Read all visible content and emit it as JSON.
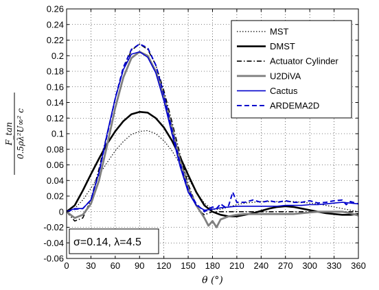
{
  "chart_data": {
    "type": "line",
    "xlabel": "θ (°)",
    "ylabel_num": "F_tan",
    "ylabel_den": "0.5ρλ²U∞² c",
    "xlim": [
      0,
      360
    ],
    "ylim": [
      -0.06,
      0.26
    ],
    "xticks": [
      "0",
      "30",
      "60",
      "90",
      "120",
      "150",
      "180",
      "210",
      "240",
      "270",
      "300",
      "330",
      "360"
    ],
    "yticks": [
      "-0.06",
      "-0.04",
      "-0.02",
      "0",
      "0.02",
      "0.04",
      "0.06",
      "0.08",
      "0.1",
      "0.12",
      "0.14",
      "0.16",
      "0.18",
      "0.2",
      "0.22",
      "0.24",
      "0.26"
    ],
    "grid": true,
    "grid_style": "dotted",
    "legend_position": "top-right",
    "annotation": "σ=0.14, λ=4.5",
    "series": [
      {
        "name": "MST",
        "color": "#000000",
        "style": "dotted",
        "x": [
          0,
          10,
          20,
          30,
          40,
          50,
          60,
          70,
          80,
          90,
          100,
          110,
          120,
          130,
          140,
          150,
          160,
          170,
          180,
          190,
          200,
          210,
          220,
          230,
          240,
          250,
          260,
          270,
          280,
          290,
          300,
          310,
          320,
          330,
          340,
          350,
          360
        ],
        "y": [
          0.0,
          0.004,
          0.015,
          0.03,
          0.047,
          0.063,
          0.078,
          0.09,
          0.099,
          0.103,
          0.104,
          0.1,
          0.091,
          0.078,
          0.061,
          0.043,
          0.025,
          0.011,
          0.003,
          0.003,
          0.006,
          0.009,
          0.011,
          0.012,
          0.013,
          0.013,
          0.013,
          0.013,
          0.013,
          0.012,
          0.011,
          0.01,
          0.008,
          0.006,
          0.004,
          0.002,
          0.0
        ]
      },
      {
        "name": "DMST",
        "color": "#000000",
        "style": "solid",
        "x": [
          0,
          10,
          20,
          30,
          40,
          50,
          60,
          70,
          80,
          90,
          100,
          110,
          120,
          130,
          140,
          150,
          160,
          170,
          180,
          190,
          200,
          210,
          220,
          230,
          240,
          250,
          260,
          270,
          280,
          290,
          300,
          310,
          320,
          330,
          340,
          350,
          360
        ],
        "y": [
          0.0,
          0.008,
          0.027,
          0.048,
          0.068,
          0.087,
          0.103,
          0.116,
          0.125,
          0.128,
          0.127,
          0.12,
          0.108,
          0.091,
          0.07,
          0.047,
          0.025,
          0.008,
          0.0,
          -0.004,
          -0.006,
          -0.006,
          -0.004,
          -0.002,
          0.001,
          0.004,
          0.006,
          0.007,
          0.006,
          0.004,
          0.002,
          0.0,
          -0.002,
          -0.003,
          -0.004,
          -0.004,
          -0.003
        ]
      },
      {
        "name": "Actuator Cylinder",
        "color": "#000000",
        "style": "dashdot",
        "x": [
          0,
          10,
          20,
          30,
          40,
          50,
          60,
          70,
          80,
          90,
          100,
          110,
          120,
          130,
          140,
          150,
          160,
          165,
          170,
          175,
          180,
          190,
          200,
          210,
          220,
          230,
          240,
          250,
          260,
          270,
          280,
          290,
          300,
          310,
          320,
          330,
          340,
          350,
          360
        ],
        "y": [
          0.0,
          -0.012,
          -0.008,
          0.015,
          0.055,
          0.1,
          0.145,
          0.182,
          0.207,
          0.215,
          0.208,
          0.188,
          0.155,
          0.115,
          0.073,
          0.035,
          0.008,
          0.0,
          -0.004,
          -0.002,
          0.0,
          0.0,
          0.0,
          0.0,
          0.0,
          0.0,
          0.0,
          0.0,
          0.0,
          0.0,
          0.0,
          0.0,
          0.0,
          0.0,
          0.0,
          0.0,
          0.0,
          0.0,
          0.0
        ]
      },
      {
        "name": "U2DiVA",
        "color": "#808080",
        "style": "solid-thick",
        "x": [
          0,
          10,
          20,
          30,
          40,
          50,
          60,
          70,
          80,
          90,
          100,
          110,
          120,
          130,
          140,
          150,
          160,
          170,
          175,
          180,
          185,
          190,
          200,
          210,
          220,
          230,
          240,
          250,
          260,
          270,
          280,
          290,
          300,
          310,
          320,
          330,
          340,
          350,
          360
        ],
        "y": [
          0.0,
          -0.008,
          -0.004,
          0.01,
          0.04,
          0.085,
          0.133,
          0.172,
          0.197,
          0.205,
          0.2,
          0.18,
          0.148,
          0.108,
          0.065,
          0.03,
          0.008,
          -0.008,
          -0.018,
          -0.012,
          -0.02,
          -0.01,
          -0.006,
          -0.004,
          -0.003,
          -0.003,
          -0.003,
          -0.003,
          -0.003,
          -0.003,
          -0.003,
          -0.002,
          -0.001,
          0.0,
          0.0,
          0.0,
          0.0,
          -0.002,
          -0.005
        ]
      },
      {
        "name": "Cactus",
        "color": "#0000CC",
        "style": "solid",
        "x": [
          0,
          10,
          20,
          30,
          40,
          50,
          60,
          70,
          80,
          90,
          100,
          110,
          120,
          130,
          140,
          150,
          160,
          170,
          180,
          190,
          200,
          210,
          220,
          230,
          240,
          250,
          260,
          270,
          280,
          290,
          300,
          310,
          320,
          330,
          340,
          350,
          360
        ],
        "y": [
          0.0,
          0.004,
          0.004,
          0.015,
          0.05,
          0.1,
          0.145,
          0.182,
          0.202,
          0.205,
          0.198,
          0.178,
          0.142,
          0.1,
          0.058,
          0.025,
          0.008,
          0.002,
          0.003,
          0.005,
          0.006,
          0.007,
          0.007,
          0.007,
          0.007,
          0.007,
          0.007,
          0.008,
          0.008,
          0.008,
          0.009,
          0.009,
          0.01,
          0.011,
          0.012,
          0.011,
          0.01
        ]
      },
      {
        "name": "ARDEMA2D",
        "color": "#0000CC",
        "style": "dashed",
        "x": [
          0,
          10,
          20,
          30,
          40,
          50,
          60,
          70,
          80,
          90,
          100,
          110,
          120,
          130,
          140,
          150,
          160,
          170,
          180,
          185,
          190,
          195,
          200,
          205,
          210,
          220,
          230,
          240,
          250,
          260,
          270,
          280,
          290,
          300,
          310,
          320,
          330,
          340,
          345,
          350,
          360
        ],
        "y": [
          0.0,
          0.003,
          0.004,
          0.015,
          0.05,
          0.098,
          0.145,
          0.185,
          0.208,
          0.215,
          0.21,
          0.188,
          0.15,
          0.105,
          0.062,
          0.028,
          0.01,
          0.0,
          0.006,
          0.004,
          0.01,
          0.006,
          0.008,
          0.025,
          0.012,
          0.012,
          0.015,
          0.012,
          0.014,
          0.012,
          0.014,
          0.012,
          0.012,
          0.014,
          0.011,
          0.012,
          0.014,
          0.015,
          0.009,
          0.013,
          0.01
        ]
      }
    ]
  }
}
